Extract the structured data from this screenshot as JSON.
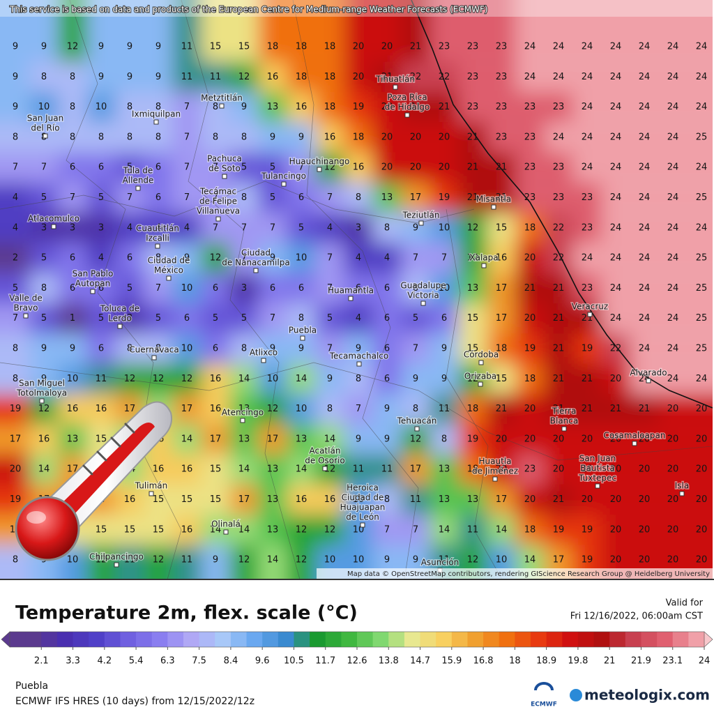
{
  "banner": "This service is based on data and products of the European Centre for Medium-range Weather Forecasts (ECMWF)",
  "attribution": "Map data © OpenStreetMap contributors, rendering GIScience Research Group @ Heidelberg University",
  "title": "Temperature 2m, flex. scale (°C)",
  "valid": [
    "Valid for",
    "Fri 12/16/2022, 06:00am CST"
  ],
  "legend": {
    "ticks": [
      2.1,
      3.3,
      4.2,
      5.4,
      6.3,
      7.5,
      8.4,
      9.6,
      10.5,
      11.7,
      12.6,
      13.8,
      14.7,
      15.9,
      16.8,
      18,
      18.9,
      19.8,
      21,
      21.9,
      23.1,
      24
    ],
    "colors": [
      "#5b3a8e",
      "#4a2fb0",
      "#5040c8",
      "#7060e0",
      "#8a7ef0",
      "#b0a8f5",
      "#a8c8f8",
      "#6aa8f0",
      "#3a8ad0",
      "#1a9a30",
      "#40b840",
      "#80d870",
      "#e8e890",
      "#f8d060",
      "#f0a030",
      "#f07010",
      "#e83a10",
      "#d01010",
      "#b01010",
      "#c84050",
      "#e06070",
      "#f0a0a8"
    ]
  },
  "location": "Puebla",
  "model": "ECMWF IFS HRES (10 days) from 12/15/2022/12z",
  "logos": [
    "ECMWF",
    "meteologix.com"
  ],
  "map": {
    "grid": [
      [
        9,
        9,
        12,
        9,
        9,
        9,
        11,
        15,
        15,
        18,
        18,
        18,
        20,
        20,
        21,
        23,
        23,
        23,
        24,
        24,
        24,
        24,
        24,
        24,
        24
      ],
      [
        9,
        8,
        8,
        9,
        9,
        9,
        11,
        11,
        12,
        16,
        18,
        18,
        20,
        21,
        22,
        22,
        23,
        23,
        24,
        24,
        24,
        24,
        24,
        24,
        24
      ],
      [
        9,
        10,
        8,
        10,
        8,
        8,
        7,
        8,
        9,
        13,
        16,
        18,
        19,
        20,
        21,
        21,
        23,
        23,
        23,
        23,
        24,
        24,
        24,
        24,
        24
      ],
      [
        8,
        8,
        8,
        8,
        8,
        8,
        7,
        8,
        8,
        9,
        9,
        16,
        18,
        20,
        20,
        20,
        21,
        23,
        23,
        24,
        24,
        24,
        24,
        24,
        25
      ],
      [
        7,
        7,
        6,
        6,
        5,
        6,
        7,
        7,
        5,
        5,
        7,
        12,
        16,
        20,
        20,
        20,
        21,
        21,
        23,
        23,
        24,
        24,
        24,
        24,
        24
      ],
      [
        4,
        5,
        7,
        5,
        7,
        6,
        7,
        7,
        8,
        5,
        6,
        7,
        8,
        13,
        17,
        19,
        21,
        21,
        23,
        23,
        23,
        24,
        24,
        24,
        25
      ],
      [
        4,
        3,
        3,
        3,
        4,
        4,
        4,
        7,
        7,
        7,
        5,
        4,
        3,
        8,
        9,
        10,
        12,
        15,
        18,
        22,
        23,
        24,
        24,
        24,
        24
      ],
      [
        2,
        5,
        6,
        4,
        6,
        8,
        9,
        12,
        7,
        9,
        10,
        7,
        4,
        4,
        7,
        7,
        12,
        16,
        20,
        22,
        24,
        24,
        24,
        24,
        25
      ],
      [
        5,
        8,
        6,
        6,
        5,
        7,
        10,
        6,
        3,
        6,
        6,
        7,
        6,
        6,
        8,
        10,
        13,
        17,
        21,
        21,
        23,
        24,
        24,
        24,
        25
      ],
      [
        7,
        5,
        1,
        5,
        3,
        5,
        6,
        5,
        5,
        7,
        8,
        5,
        4,
        6,
        5,
        6,
        15,
        17,
        20,
        21,
        21,
        24,
        24,
        24,
        25
      ],
      [
        8,
        9,
        9,
        6,
        8,
        8,
        10,
        6,
        8,
        9,
        9,
        7,
        9,
        6,
        7,
        9,
        15,
        18,
        19,
        21,
        19,
        22,
        24,
        24,
        25
      ],
      [
        8,
        9,
        10,
        11,
        12,
        12,
        12,
        16,
        14,
        10,
        14,
        9,
        8,
        6,
        9,
        9,
        12,
        15,
        18,
        21,
        21,
        20,
        24,
        24,
        24
      ],
      [
        19,
        12,
        16,
        16,
        17,
        14,
        17,
        16,
        13,
        12,
        10,
        8,
        7,
        9,
        8,
        11,
        18,
        21,
        20,
        21,
        21,
        21,
        21,
        20,
        20
      ],
      [
        17,
        16,
        13,
        15,
        14,
        16,
        14,
        17,
        13,
        17,
        13,
        14,
        9,
        9,
        12,
        8,
        19,
        20,
        20,
        20,
        20,
        20,
        20,
        20,
        20
      ],
      [
        20,
        14,
        17,
        15,
        14,
        16,
        16,
        15,
        14,
        13,
        14,
        12,
        11,
        11,
        17,
        13,
        18,
        20,
        23,
        20,
        20,
        20,
        20,
        20,
        20
      ],
      [
        19,
        17,
        17,
        17,
        16,
        15,
        15,
        15,
        17,
        13,
        16,
        16,
        10,
        8,
        11,
        13,
        13,
        17,
        20,
        21,
        20,
        20,
        20,
        20,
        20
      ],
      [
        17,
        14,
        15,
        15,
        15,
        15,
        16,
        14,
        14,
        13,
        12,
        12,
        10,
        7,
        7,
        14,
        11,
        14,
        18,
        19,
        19,
        20,
        20,
        20,
        20
      ],
      [
        8,
        9,
        10,
        12,
        11,
        12,
        11,
        9,
        12,
        14,
        12,
        10,
        10,
        9,
        9,
        11,
        12,
        10,
        14,
        17,
        19,
        20,
        20,
        20,
        20
      ]
    ],
    "cities": [
      {
        "lines": [
          "Tihuatlán"
        ]
      },
      {
        "lines": [
          "Poza Rica",
          "de Hidalgo"
        ]
      },
      {
        "lines": [
          "Metztitlán"
        ]
      },
      {
        "lines": [
          "Ixmiquilpan"
        ]
      },
      {
        "lines": [
          "San Juan",
          "del Río"
        ]
      },
      {
        "lines": [
          "Huauchinango"
        ]
      },
      {
        "lines": [
          "Pachuca",
          "de Soto"
        ]
      },
      {
        "lines": [
          "Tulancingo"
        ]
      },
      {
        "lines": [
          "Tula de",
          "Allende"
        ]
      },
      {
        "lines": [
          "Misantla"
        ]
      },
      {
        "lines": [
          "Teziutlán"
        ]
      },
      {
        "lines": [
          "Atlacomulco"
        ]
      },
      {
        "lines": [
          "Tecámac",
          "de Felipe",
          "Villanueva"
        ]
      },
      {
        "lines": [
          "Cuautitlán",
          "Izcalli"
        ]
      },
      {
        "lines": [
          "Ciudad",
          "de Nanacamilpa"
        ]
      },
      {
        "lines": [
          "Xalapa"
        ]
      },
      {
        "lines": [
          "Ciudad de",
          "México"
        ]
      },
      {
        "lines": [
          "San Pablo",
          "Autopan"
        ]
      },
      {
        "lines": [
          "Huamantla"
        ]
      },
      {
        "lines": [
          "Guadalupe",
          "Victoria"
        ]
      },
      {
        "lines": [
          "Valle de",
          "Bravo"
        ]
      },
      {
        "lines": [
          "Toluca de",
          "Lerdo"
        ]
      },
      {
        "lines": [
          "Veracruz"
        ]
      },
      {
        "lines": [
          "Puebla"
        ]
      },
      {
        "lines": [
          "Atlixco"
        ]
      },
      {
        "lines": [
          "Tecamachalco"
        ]
      },
      {
        "lines": [
          "Córdoba"
        ]
      },
      {
        "lines": [
          "Cuernavaca"
        ]
      },
      {
        "lines": [
          "Orizaba"
        ]
      },
      {
        "lines": [
          "Alvarado"
        ]
      },
      {
        "lines": [
          "San Miguel",
          "Totolmaloya"
        ]
      },
      {
        "lines": [
          "Atencingo"
        ]
      },
      {
        "lines": [
          "Tierra",
          "Blanca"
        ]
      },
      {
        "lines": [
          "Tehuacán"
        ]
      },
      {
        "lines": [
          "Cosamaloapan"
        ]
      },
      {
        "lines": [
          "Acatlán",
          "de Osorio"
        ]
      },
      {
        "lines": [
          "Huautla",
          "de Jiménez"
        ]
      },
      {
        "lines": [
          "San Juan",
          "Bautista",
          "Tuxtepec"
        ]
      },
      {
        "lines": [
          "Tulimán"
        ]
      },
      {
        "lines": [
          "Isla"
        ]
      },
      {
        "lines": [
          "Heroica",
          "Ciudad de",
          "Huajuapan",
          "de León"
        ]
      },
      {
        "lines": [
          "Olinalá"
        ]
      },
      {
        "lines": [
          "Chilpancingo"
        ]
      },
      {
        "lines": [
          "Asunción"
        ]
      }
    ]
  }
}
